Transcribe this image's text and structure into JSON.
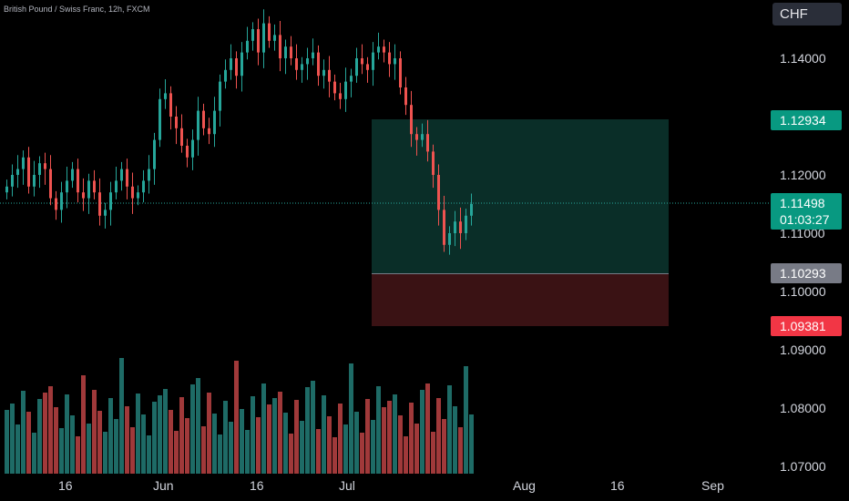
{
  "header": {
    "symbol_title": "British Pound / Swiss Franc, 12h, FXCM",
    "currency_label": "CHF"
  },
  "colors": {
    "background": "#000000",
    "up": "#26a69a",
    "down": "#ef5350",
    "volume_up": "#1e6b66",
    "volume_down": "#a0393a",
    "profit_zone": "#0a2e28",
    "loss_zone": "#3a1214",
    "target_badge": "#089981",
    "stop_badge": "#f23645",
    "entry_badge": "#787b86",
    "axis_text": "#d1d4dc"
  },
  "price_axis": {
    "ticks": [
      "1.14000",
      "1.12000",
      "1.11000",
      "1.10000",
      "1.09000",
      "1.08000",
      "1.07000"
    ],
    "current_price": "1.11498",
    "countdown": "01:03:27",
    "target_price": "1.12934",
    "entry_price": "1.10293",
    "stop_price": "1.09381"
  },
  "time_axis": {
    "labels": [
      "16",
      "Jun",
      "16",
      "Jul",
      "Aug",
      "16",
      "Sep"
    ]
  },
  "chart_data": {
    "type": "candlestick",
    "interval": "12h",
    "y_range": [
      1.07,
      1.148
    ],
    "candles_close_path": [
      1.118,
      1.12,
      1.121,
      1.123,
      1.118,
      1.12,
      1.122,
      1.121,
      1.116,
      1.114,
      1.117,
      1.119,
      1.121,
      1.117,
      1.116,
      1.119,
      1.117,
      1.113,
      1.114,
      1.117,
      1.119,
      1.121,
      1.118,
      1.116,
      1.117,
      1.119,
      1.121,
      1.126,
      1.133,
      1.134,
      1.13,
      1.128,
      1.125,
      1.123,
      1.126,
      1.131,
      1.128,
      1.127,
      1.131,
      1.136,
      1.138,
      1.14,
      1.137,
      1.141,
      1.143,
      1.145,
      1.141,
      1.146,
      1.143,
      1.144,
      1.14,
      1.142,
      1.14,
      1.138,
      1.139,
      1.14,
      1.141,
      1.137,
      1.138,
      1.136,
      1.134,
      1.133,
      1.136,
      1.137,
      1.14,
      1.139,
      1.138,
      1.141,
      1.142,
      1.141,
      1.139,
      1.14,
      1.135,
      1.132,
      1.127,
      1.126,
      1.127,
      1.124,
      1.12,
      1.114,
      1.108,
      1.11,
      1.112,
      1.11,
      1.113,
      1.115
    ],
    "risk_reward_position": {
      "entry": 1.10293,
      "target": 1.12934,
      "stop": 1.09381
    },
    "current_price_line": 1.11498
  }
}
